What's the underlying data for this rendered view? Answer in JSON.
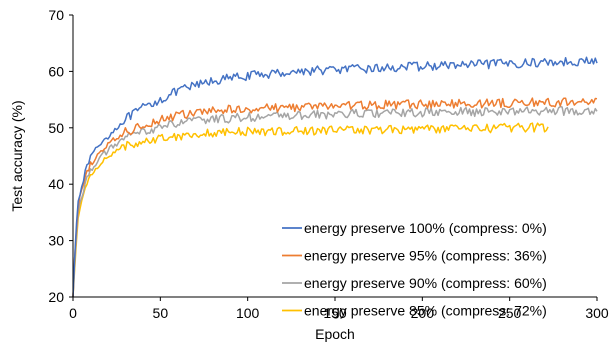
{
  "chart_data": {
    "type": "line",
    "title": "",
    "xlabel": "Epoch",
    "ylabel": "Test accuracy (%)",
    "xlim": [
      0,
      300
    ],
    "ylim": [
      20,
      70
    ],
    "xticks": [
      0,
      50,
      100,
      150,
      200,
      250,
      300
    ],
    "yticks": [
      20,
      30,
      40,
      50,
      60,
      70
    ],
    "grid": false,
    "legend_position": "bottom-right",
    "series": [
      {
        "name": "energy preserve 100% (compress: 0%)",
        "color": "#4472C4",
        "last_epoch": 300,
        "x": [
          0,
          1,
          2,
          3,
          5,
          8,
          10,
          15,
          20,
          25,
          30,
          40,
          50,
          60,
          70,
          80,
          90,
          100,
          110,
          120,
          130,
          140,
          150,
          160,
          170,
          180,
          190,
          200,
          210,
          220,
          230,
          240,
          250,
          260,
          270,
          280,
          290,
          300
        ],
        "y": [
          20,
          27,
          33,
          37,
          40,
          43,
          45,
          47,
          48.5,
          50,
          51.5,
          53.5,
          55,
          56.5,
          57.5,
          58.3,
          58.8,
          59.2,
          59.5,
          59.8,
          60,
          60.2,
          60.3,
          60.4,
          60.5,
          60.6,
          60.8,
          60.9,
          61,
          61.1,
          61.2,
          61.3,
          61.4,
          61.5,
          61.6,
          61.7,
          61.8,
          61.8
        ]
      },
      {
        "name": "energy preserve 95% (compress: 36%)",
        "color": "#ED7D31",
        "last_epoch": 300,
        "x": [
          0,
          1,
          2,
          3,
          5,
          8,
          10,
          15,
          20,
          25,
          30,
          40,
          50,
          60,
          70,
          80,
          90,
          100,
          110,
          120,
          130,
          140,
          150,
          160,
          170,
          180,
          190,
          200,
          210,
          220,
          230,
          240,
          250,
          260,
          270,
          280,
          290,
          300
        ],
        "y": [
          20,
          27,
          32,
          36,
          39,
          42,
          43.5,
          45.5,
          47,
          48.2,
          49.2,
          50.5,
          51.5,
          52.2,
          52.6,
          53,
          53.2,
          53.4,
          53.5,
          53.6,
          53.7,
          53.8,
          53.9,
          54,
          54,
          54.1,
          54.1,
          54.2,
          54.2,
          54.3,
          54.3,
          54.4,
          54.4,
          54.5,
          54.5,
          54.5,
          54.6,
          54.6
        ]
      },
      {
        "name": "energy preserve 90% (compress: 60%)",
        "color": "#A5A5A5",
        "last_epoch": 300,
        "x": [
          0,
          1,
          2,
          3,
          5,
          8,
          10,
          15,
          20,
          25,
          30,
          40,
          50,
          60,
          70,
          80,
          90,
          100,
          110,
          120,
          130,
          140,
          150,
          160,
          170,
          180,
          190,
          200,
          210,
          220,
          230,
          240,
          250,
          260,
          270,
          280,
          290,
          300
        ],
        "y": [
          20,
          26,
          31,
          35,
          38,
          41,
          42.5,
          44.5,
          46,
          47.2,
          48.2,
          49.3,
          50.2,
          50.8,
          51.2,
          51.5,
          51.7,
          51.9,
          52,
          52.1,
          52.2,
          52.3,
          52.4,
          52.5,
          52.5,
          52.6,
          52.6,
          52.7,
          52.7,
          52.8,
          52.8,
          52.9,
          52.9,
          53,
          53,
          53,
          53.1,
          53.1
        ]
      },
      {
        "name": "energy preserve 85% (compress: 72%)",
        "color": "#FFC000",
        "last_epoch": 272,
        "x": [
          0,
          1,
          2,
          3,
          5,
          8,
          10,
          15,
          20,
          25,
          30,
          40,
          50,
          60,
          70,
          80,
          90,
          100,
          110,
          120,
          130,
          140,
          150,
          160,
          170,
          180,
          190,
          200,
          210,
          220,
          230,
          240,
          250,
          260,
          272
        ],
        "y": [
          20,
          25,
          30,
          34,
          37,
          40,
          41.5,
          43.5,
          45,
          46,
          46.8,
          47.6,
          48.2,
          48.6,
          48.9,
          49.1,
          49.2,
          49.3,
          49.4,
          49.4,
          49.5,
          49.5,
          49.6,
          49.6,
          49.7,
          49.7,
          49.7,
          49.8,
          49.8,
          49.9,
          49.9,
          49.9,
          50,
          50,
          50.1
        ]
      }
    ]
  }
}
